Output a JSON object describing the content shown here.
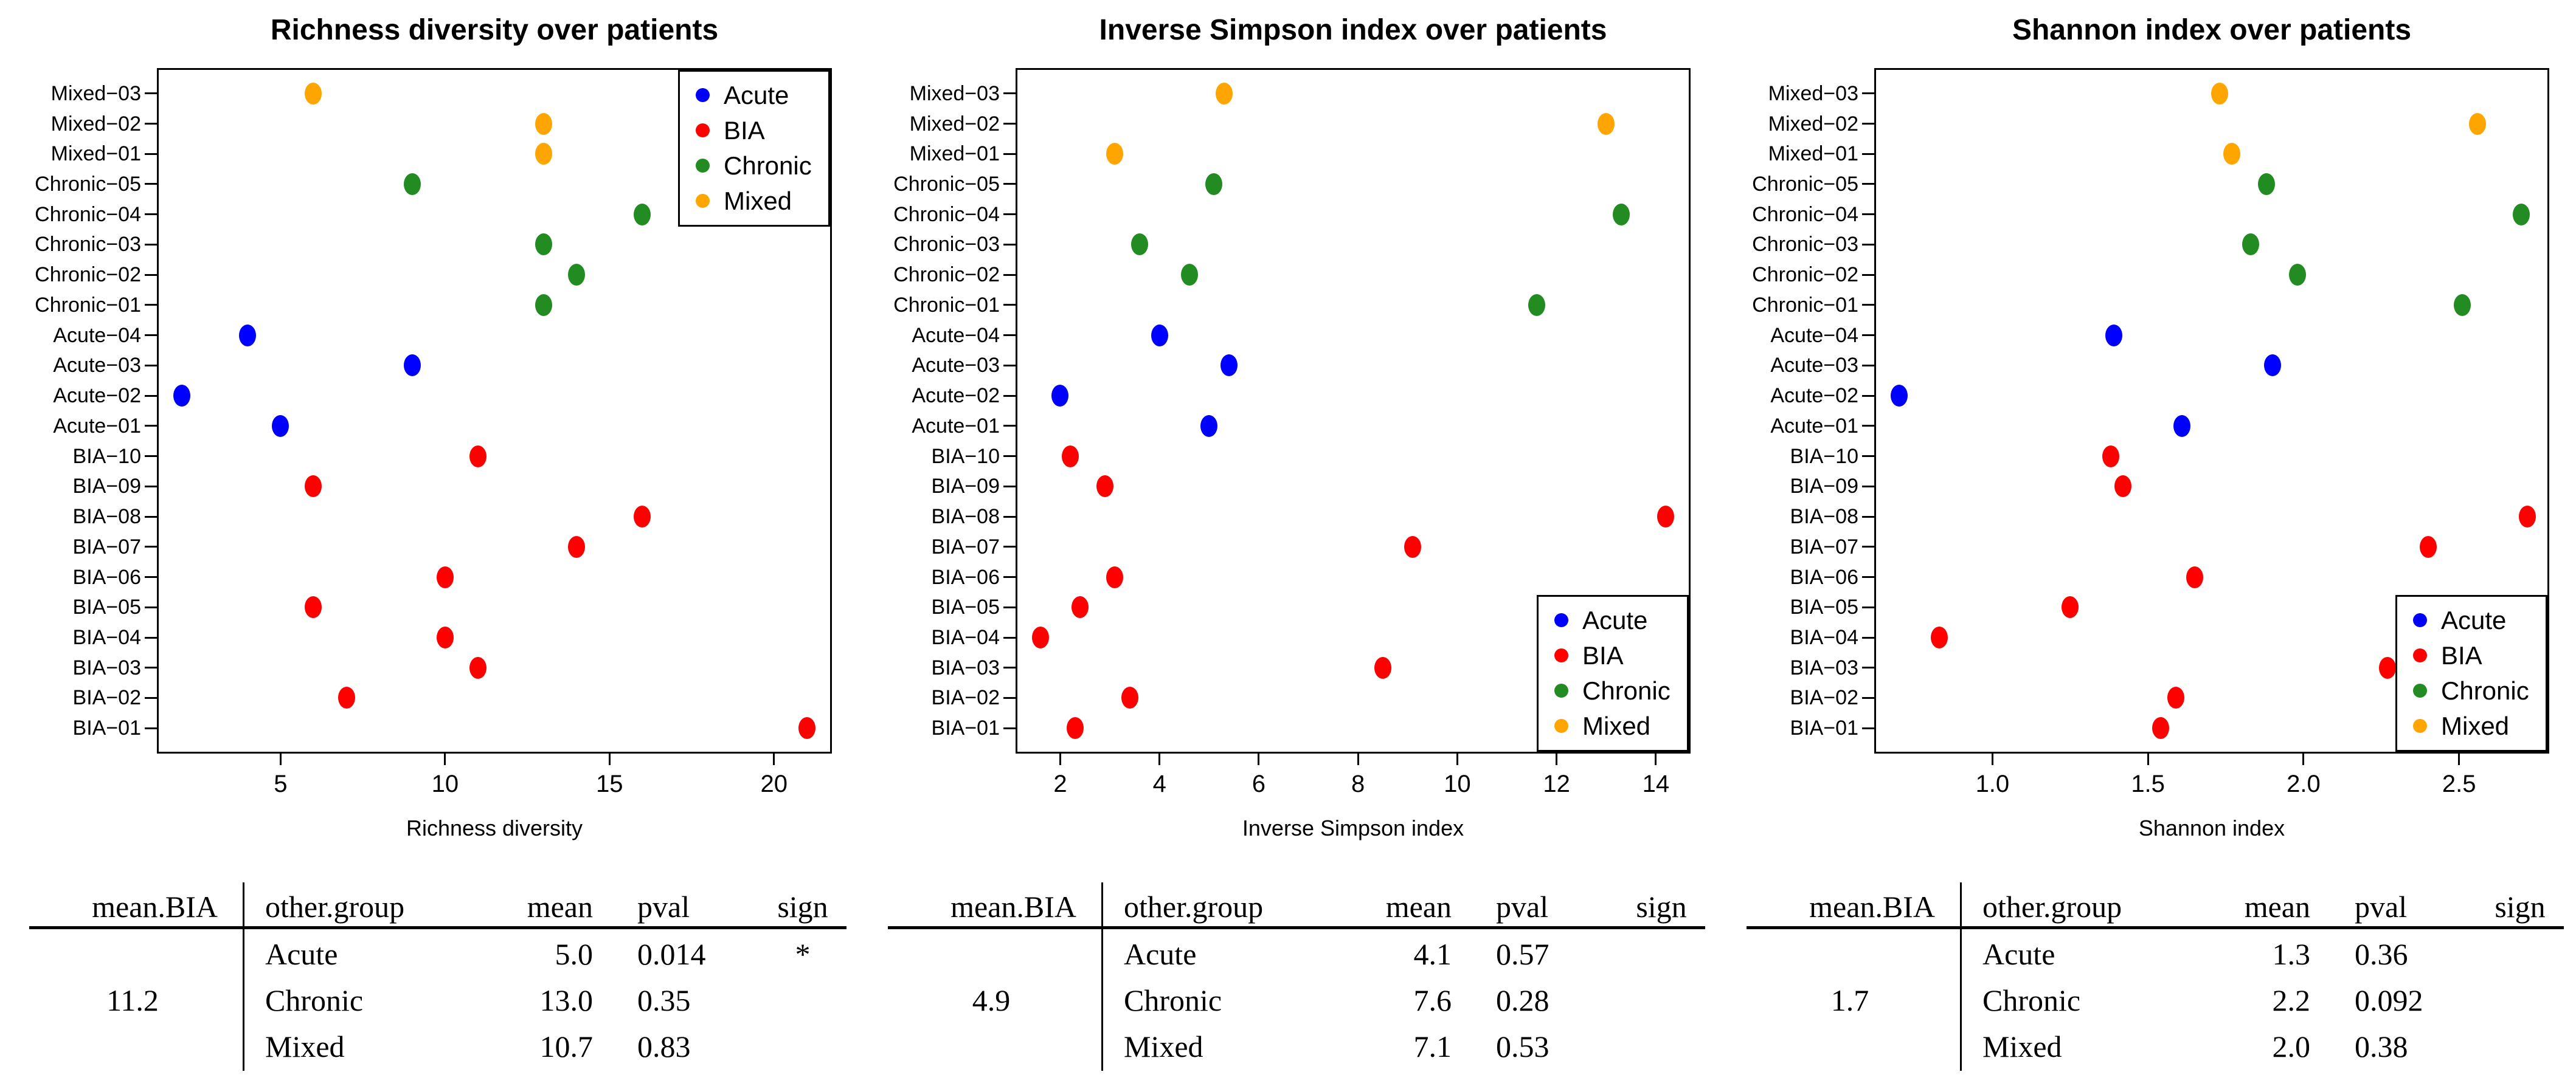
{
  "figure": {
    "background": "#ffffff"
  },
  "groups": [
    {
      "label": "Acute",
      "color": "#0000ff"
    },
    {
      "label": "BIA",
      "color": "#ff0000"
    },
    {
      "label": "Chronic",
      "color": "#228b22"
    },
    {
      "label": "Mixed",
      "color": "#ffa500"
    }
  ],
  "chart_data": [
    {
      "type": "scatter",
      "title": "Richness diversity over patients",
      "xlabel": "Richness diversity",
      "xlim": [
        1.24,
        21.76
      ],
      "xticks": [
        5,
        10,
        15,
        20
      ],
      "xtick_labels": [
        "5",
        "10",
        "15",
        "20"
      ],
      "legend_position": "topright",
      "legend_entries": [
        "Acute",
        "BIA",
        "Chronic",
        "Mixed"
      ],
      "categories": [
        "Mixed−03",
        "Mixed−02",
        "Mixed−01",
        "Chronic−05",
        "Chronic−04",
        "Chronic−03",
        "Chronic−02",
        "Chronic−01",
        "Acute−04",
        "Acute−03",
        "Acute−02",
        "Acute−01",
        "BIA−10",
        "BIA−09",
        "BIA−08",
        "BIA−07",
        "BIA−06",
        "BIA−05",
        "BIA−04",
        "BIA−03",
        "BIA−02",
        "BIA−01"
      ],
      "points": [
        {
          "patient": "Mixed−03",
          "group": "Mixed",
          "x": 6
        },
        {
          "patient": "Mixed−02",
          "group": "Mixed",
          "x": 13
        },
        {
          "patient": "Mixed−01",
          "group": "Mixed",
          "x": 13
        },
        {
          "patient": "Chronic−05",
          "group": "Chronic",
          "x": 9
        },
        {
          "patient": "Chronic−04",
          "group": "Chronic",
          "x": 16
        },
        {
          "patient": "Chronic−03",
          "group": "Chronic",
          "x": 13
        },
        {
          "patient": "Chronic−02",
          "group": "Chronic",
          "x": 14
        },
        {
          "patient": "Chronic−01",
          "group": "Chronic",
          "x": 13
        },
        {
          "patient": "Acute−04",
          "group": "Acute",
          "x": 4
        },
        {
          "patient": "Acute−03",
          "group": "Acute",
          "x": 9
        },
        {
          "patient": "Acute−02",
          "group": "Acute",
          "x": 2
        },
        {
          "patient": "Acute−01",
          "group": "Acute",
          "x": 5
        },
        {
          "patient": "BIA−10",
          "group": "BIA",
          "x": 11
        },
        {
          "patient": "BIA−09",
          "group": "BIA",
          "x": 6
        },
        {
          "patient": "BIA−08",
          "group": "BIA",
          "x": 16
        },
        {
          "patient": "BIA−07",
          "group": "BIA",
          "x": 14
        },
        {
          "patient": "BIA−06",
          "group": "BIA",
          "x": 10
        },
        {
          "patient": "BIA−05",
          "group": "BIA",
          "x": 6
        },
        {
          "patient": "BIA−04",
          "group": "BIA",
          "x": 10
        },
        {
          "patient": "BIA−03",
          "group": "BIA",
          "x": 11
        },
        {
          "patient": "BIA−02",
          "group": "BIA",
          "x": 7
        },
        {
          "patient": "BIA−01",
          "group": "BIA",
          "x": 21
        }
      ]
    },
    {
      "type": "scatter",
      "title": "Inverse Simpson index over patients",
      "xlabel": "Inverse Simpson index",
      "xlim": [
        1.1,
        14.7
      ],
      "xticks": [
        2,
        4,
        6,
        8,
        10,
        12,
        14
      ],
      "xtick_labels": [
        "2",
        "4",
        "6",
        "8",
        "10",
        "12",
        "14"
      ],
      "legend_position": "bottomright",
      "legend_entries": [
        "Acute",
        "BIA",
        "Chronic",
        "Mixed"
      ],
      "categories": [
        "Mixed−03",
        "Mixed−02",
        "Mixed−01",
        "Chronic−05",
        "Chronic−04",
        "Chronic−03",
        "Chronic−02",
        "Chronic−01",
        "Acute−04",
        "Acute−03",
        "Acute−02",
        "Acute−01",
        "BIA−10",
        "BIA−09",
        "BIA−08",
        "BIA−07",
        "BIA−06",
        "BIA−05",
        "BIA−04",
        "BIA−03",
        "BIA−02",
        "BIA−01"
      ],
      "points": [
        {
          "patient": "Mixed−03",
          "group": "Mixed",
          "x": 5.3
        },
        {
          "patient": "Mixed−02",
          "group": "Mixed",
          "x": 13.0
        },
        {
          "patient": "Mixed−01",
          "group": "Mixed",
          "x": 3.1
        },
        {
          "patient": "Chronic−05",
          "group": "Chronic",
          "x": 5.1
        },
        {
          "patient": "Chronic−04",
          "group": "Chronic",
          "x": 13.3
        },
        {
          "patient": "Chronic−03",
          "group": "Chronic",
          "x": 3.6
        },
        {
          "patient": "Chronic−02",
          "group": "Chronic",
          "x": 4.6
        },
        {
          "patient": "Chronic−01",
          "group": "Chronic",
          "x": 11.6
        },
        {
          "patient": "Acute−04",
          "group": "Acute",
          "x": 4.0
        },
        {
          "patient": "Acute−03",
          "group": "Acute",
          "x": 5.4
        },
        {
          "patient": "Acute−02",
          "group": "Acute",
          "x": 2.0
        },
        {
          "patient": "Acute−01",
          "group": "Acute",
          "x": 5.0
        },
        {
          "patient": "BIA−10",
          "group": "BIA",
          "x": 2.2
        },
        {
          "patient": "BIA−09",
          "group": "BIA",
          "x": 2.9
        },
        {
          "patient": "BIA−08",
          "group": "BIA",
          "x": 14.2
        },
        {
          "patient": "BIA−07",
          "group": "BIA",
          "x": 9.1
        },
        {
          "patient": "BIA−06",
          "group": "BIA",
          "x": 3.1
        },
        {
          "patient": "BIA−05",
          "group": "BIA",
          "x": 2.4
        },
        {
          "patient": "BIA−04",
          "group": "BIA",
          "x": 1.6
        },
        {
          "patient": "BIA−03",
          "group": "BIA",
          "x": 8.5
        },
        {
          "patient": "BIA−02",
          "group": "BIA",
          "x": 3.4
        },
        {
          "patient": "BIA−01",
          "group": "BIA",
          "x": 2.3
        }
      ]
    },
    {
      "type": "scatter",
      "title": "Shannon index over patients",
      "xlabel": "Shannon index",
      "xlim": [
        0.62,
        2.79
      ],
      "xticks": [
        1.0,
        1.5,
        2.0,
        2.5
      ],
      "xtick_labels": [
        "1.0",
        "1.5",
        "2.0",
        "2.5"
      ],
      "legend_position": "bottomright",
      "legend_entries": [
        "Acute",
        "BIA",
        "Chronic",
        "Mixed"
      ],
      "categories": [
        "Mixed−03",
        "Mixed−02",
        "Mixed−01",
        "Chronic−05",
        "Chronic−04",
        "Chronic−03",
        "Chronic−02",
        "Chronic−01",
        "Acute−04",
        "Acute−03",
        "Acute−02",
        "Acute−01",
        "BIA−10",
        "BIA−09",
        "BIA−08",
        "BIA−07",
        "BIA−06",
        "BIA−05",
        "BIA−04",
        "BIA−03",
        "BIA−02",
        "BIA−01"
      ],
      "points": [
        {
          "patient": "Mixed−03",
          "group": "Mixed",
          "x": 1.73
        },
        {
          "patient": "Mixed−02",
          "group": "Mixed",
          "x": 2.56
        },
        {
          "patient": "Mixed−01",
          "group": "Mixed",
          "x": 1.77
        },
        {
          "patient": "Chronic−05",
          "group": "Chronic",
          "x": 1.88
        },
        {
          "patient": "Chronic−04",
          "group": "Chronic",
          "x": 2.7
        },
        {
          "patient": "Chronic−03",
          "group": "Chronic",
          "x": 1.83
        },
        {
          "patient": "Chronic−02",
          "group": "Chronic",
          "x": 1.98
        },
        {
          "patient": "Chronic−01",
          "group": "Chronic",
          "x": 2.51
        },
        {
          "patient": "Acute−04",
          "group": "Acute",
          "x": 1.39
        },
        {
          "patient": "Acute−03",
          "group": "Acute",
          "x": 1.9
        },
        {
          "patient": "Acute−02",
          "group": "Acute",
          "x": 0.7
        },
        {
          "patient": "Acute−01",
          "group": "Acute",
          "x": 1.61
        },
        {
          "patient": "BIA−10",
          "group": "BIA",
          "x": 1.38
        },
        {
          "patient": "BIA−09",
          "group": "BIA",
          "x": 1.42
        },
        {
          "patient": "BIA−08",
          "group": "BIA",
          "x": 2.72
        },
        {
          "patient": "BIA−07",
          "group": "BIA",
          "x": 2.4
        },
        {
          "patient": "BIA−06",
          "group": "BIA",
          "x": 1.65
        },
        {
          "patient": "BIA−05",
          "group": "BIA",
          "x": 1.25
        },
        {
          "patient": "BIA−04",
          "group": "BIA",
          "x": 0.83
        },
        {
          "patient": "BIA−03",
          "group": "BIA",
          "x": 2.27
        },
        {
          "patient": "BIA−02",
          "group": "BIA",
          "x": 1.59
        },
        {
          "patient": "BIA−01",
          "group": "BIA",
          "x": 1.54
        }
      ]
    }
  ],
  "tables": [
    {
      "columns": [
        "mean.BIA",
        "other.group",
        "mean",
        "pval",
        "sign"
      ],
      "mean_bia": "11.2",
      "rows": [
        {
          "other_group": "Acute",
          "mean": "5.0",
          "pval": "0.014",
          "sign": "*"
        },
        {
          "other_group": "Chronic",
          "mean": "13.0",
          "pval": "0.35",
          "sign": ""
        },
        {
          "other_group": "Mixed",
          "mean": "10.7",
          "pval": "0.83",
          "sign": ""
        }
      ]
    },
    {
      "columns": [
        "mean.BIA",
        "other.group",
        "mean",
        "pval",
        "sign"
      ],
      "mean_bia": "4.9",
      "rows": [
        {
          "other_group": "Acute",
          "mean": "4.1",
          "pval": "0.57",
          "sign": ""
        },
        {
          "other_group": "Chronic",
          "mean": "7.6",
          "pval": "0.28",
          "sign": ""
        },
        {
          "other_group": "Mixed",
          "mean": "7.1",
          "pval": "0.53",
          "sign": ""
        }
      ]
    },
    {
      "columns": [
        "mean.BIA",
        "other.group",
        "mean",
        "pval",
        "sign"
      ],
      "mean_bia": "1.7",
      "rows": [
        {
          "other_group": "Acute",
          "mean": "1.3",
          "pval": "0.36",
          "sign": ""
        },
        {
          "other_group": "Chronic",
          "mean": "2.2",
          "pval": "0.092",
          "sign": ""
        },
        {
          "other_group": "Mixed",
          "mean": "2.0",
          "pval": "0.38",
          "sign": ""
        }
      ]
    }
  ]
}
